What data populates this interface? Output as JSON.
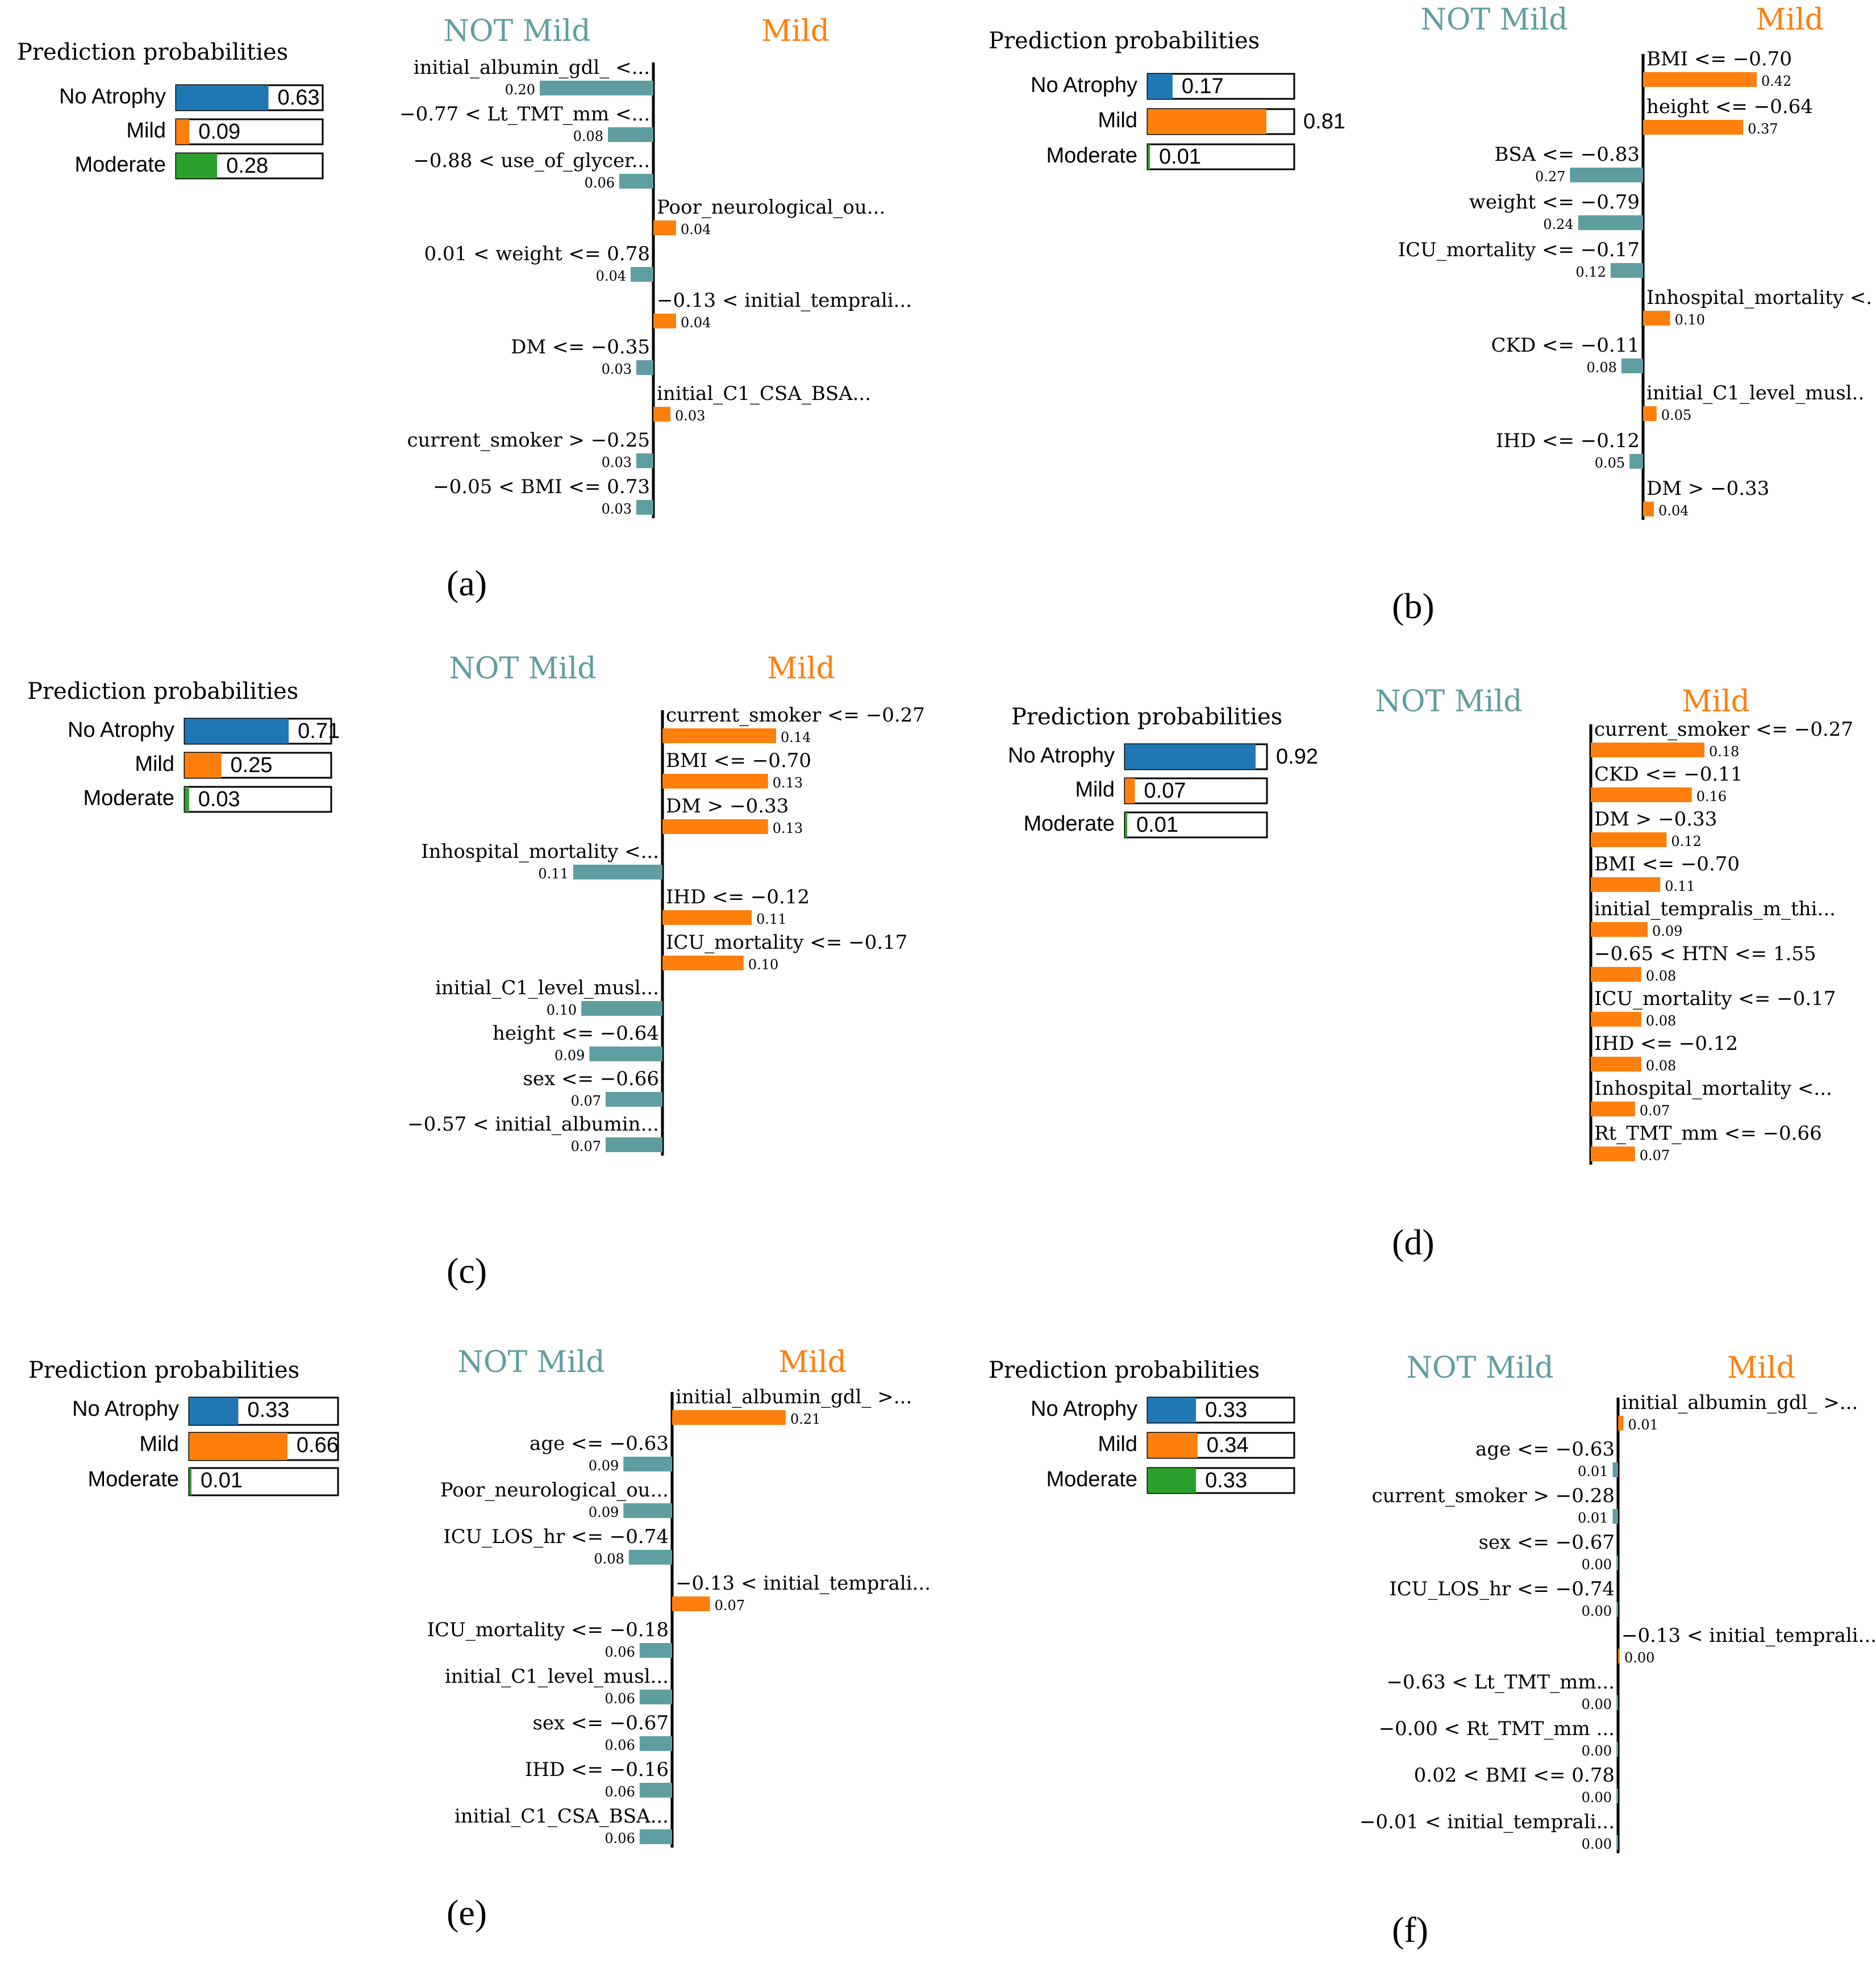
{
  "colors": {
    "blue": "#1f77b4",
    "orange": "#ff7f0e",
    "green": "#2ca02c",
    "teal": "#5f9ea0"
  },
  "chart_data": [
    {
      "type": "bar",
      "panel": "(a)",
      "pred_title": "Prediction probabilities",
      "probabilities": [
        {
          "label": "No Atrophy",
          "value": 0.63,
          "text": "0.63",
          "color": "blue"
        },
        {
          "label": "Mild",
          "value": 0.09,
          "text": "0.09",
          "color": "orange"
        },
        {
          "label": "Moderate",
          "value": 0.28,
          "text": "0.28",
          "color": "green"
        }
      ],
      "neg_label": "NOT Mild",
      "pos_label": "Mild",
      "max_weight": 0.2,
      "features": [
        {
          "label": "initial_albumin_gdl_ <...",
          "weight": 0.2,
          "text": "0.20",
          "side": "neg"
        },
        {
          "label": "−0.77 < Lt_TMT_mm <...",
          "weight": 0.08,
          "text": "0.08",
          "side": "neg"
        },
        {
          "label": "−0.88 < use_of_glycer...",
          "weight": 0.06,
          "text": "0.06",
          "side": "neg"
        },
        {
          "label": "Poor_neurological_ou...",
          "weight": 0.04,
          "text": "0.04",
          "side": "pos"
        },
        {
          "label": "0.01 < weight <= 0.78",
          "weight": 0.04,
          "text": "0.04",
          "side": "neg"
        },
        {
          "label": "−0.13 < initial_temprali...",
          "weight": 0.04,
          "text": "0.04",
          "side": "pos"
        },
        {
          "label": "DM <= −0.35",
          "weight": 0.03,
          "text": "0.03",
          "side": "neg"
        },
        {
          "label": "initial_C1_CSA_BSA...",
          "weight": 0.03,
          "text": "0.03",
          "side": "pos"
        },
        {
          "label": "current_smoker > −0.25",
          "weight": 0.03,
          "text": "0.03",
          "side": "neg"
        },
        {
          "label": "−0.05 < BMI <= 0.73",
          "weight": 0.03,
          "text": "0.03",
          "side": "neg"
        }
      ]
    },
    {
      "type": "bar",
      "panel": "(b)",
      "pred_title": "Prediction probabilities",
      "probabilities": [
        {
          "label": "No Atrophy",
          "value": 0.17,
          "text": "0.17",
          "color": "blue"
        },
        {
          "label": "Mild",
          "value": 0.81,
          "text": "0.81",
          "color": "orange"
        },
        {
          "label": "Moderate",
          "value": 0.01,
          "text": "0.01",
          "color": "green"
        }
      ],
      "neg_label": "NOT Mild",
      "pos_label": "Mild",
      "max_weight": 0.42,
      "features": [
        {
          "label": "BMI <= −0.70",
          "weight": 0.42,
          "text": "0.42",
          "side": "pos"
        },
        {
          "label": "height <= −0.64",
          "weight": 0.37,
          "text": "0.37",
          "side": "pos"
        },
        {
          "label": "BSA <= −0.83",
          "weight": 0.27,
          "text": "0.27",
          "side": "neg"
        },
        {
          "label": "weight <= −0.79",
          "weight": 0.24,
          "text": "0.24",
          "side": "neg"
        },
        {
          "label": "ICU_mortality <= −0.17",
          "weight": 0.12,
          "text": "0.12",
          "side": "neg"
        },
        {
          "label": "Inhospital_mortality <.",
          "weight": 0.1,
          "text": "0.10",
          "side": "pos"
        },
        {
          "label": "CKD <= −0.11",
          "weight": 0.08,
          "text": "0.08",
          "side": "neg"
        },
        {
          "label": "initial_C1_level_musl..",
          "weight": 0.05,
          "text": "0.05",
          "side": "pos"
        },
        {
          "label": "IHD <= −0.12",
          "weight": 0.05,
          "text": "0.05",
          "side": "neg"
        },
        {
          "label": "DM > −0.33",
          "weight": 0.04,
          "text": "0.04",
          "side": "pos"
        }
      ]
    },
    {
      "type": "bar",
      "panel": "(c)",
      "pred_title": "Prediction probabilities",
      "probabilities": [
        {
          "label": "No Atrophy",
          "value": 0.71,
          "text": "0.71",
          "color": "blue"
        },
        {
          "label": "Mild",
          "value": 0.25,
          "text": "0.25",
          "color": "orange"
        },
        {
          "label": "Moderate",
          "value": 0.03,
          "text": "0.03",
          "color": "green"
        }
      ],
      "neg_label": "NOT Mild",
      "pos_label": "Mild",
      "max_weight": 0.14,
      "features": [
        {
          "label": "current_smoker <= −0.27",
          "weight": 0.14,
          "text": "0.14",
          "side": "pos"
        },
        {
          "label": "BMI <= −0.70",
          "weight": 0.13,
          "text": "0.13",
          "side": "pos"
        },
        {
          "label": "DM > −0.33",
          "weight": 0.13,
          "text": "0.13",
          "side": "pos"
        },
        {
          "label": "Inhospital_mortality <...",
          "weight": 0.11,
          "text": "0.11",
          "side": "neg"
        },
        {
          "label": "IHD <= −0.12",
          "weight": 0.11,
          "text": "0.11",
          "side": "pos"
        },
        {
          "label": "ICU_mortality <= −0.17",
          "weight": 0.1,
          "text": "0.10",
          "side": "pos"
        },
        {
          "label": "initial_C1_level_musl...",
          "weight": 0.1,
          "text": "0.10",
          "side": "neg"
        },
        {
          "label": "height <= −0.64",
          "weight": 0.09,
          "text": "0.09",
          "side": "neg"
        },
        {
          "label": "sex <= −0.66",
          "weight": 0.07,
          "text": "0.07",
          "side": "neg"
        },
        {
          "label": "−0.57 < initial_albumin...",
          "weight": 0.07,
          "text": "0.07",
          "side": "neg"
        }
      ]
    },
    {
      "type": "bar",
      "panel": "(d)",
      "pred_title": "Prediction probabilities",
      "probabilities": [
        {
          "label": "No Atrophy",
          "value": 0.92,
          "text": "0.92",
          "color": "blue"
        },
        {
          "label": "Mild",
          "value": 0.07,
          "text": "0.07",
          "color": "orange"
        },
        {
          "label": "Moderate",
          "value": 0.01,
          "text": "0.01",
          "color": "green"
        }
      ],
      "neg_label": "NOT Mild",
      "pos_label": "Mild",
      "max_weight": 0.18,
      "features": [
        {
          "label": "current_smoker <= −0.27",
          "weight": 0.18,
          "text": "0.18",
          "side": "pos"
        },
        {
          "label": "CKD <= −0.11",
          "weight": 0.16,
          "text": "0.16",
          "side": "pos"
        },
        {
          "label": "DM > −0.33",
          "weight": 0.12,
          "text": "0.12",
          "side": "pos"
        },
        {
          "label": "BMI <= −0.70",
          "weight": 0.11,
          "text": "0.11",
          "side": "pos"
        },
        {
          "label": "initial_tempralis_m_thi...",
          "weight": 0.09,
          "text": "0.09",
          "side": "pos"
        },
        {
          "label": "−0.65 < HTN <= 1.55",
          "weight": 0.08,
          "text": "0.08",
          "side": "pos"
        },
        {
          "label": "ICU_mortality <= −0.17",
          "weight": 0.08,
          "text": "0.08",
          "side": "pos"
        },
        {
          "label": "IHD <= −0.12",
          "weight": 0.08,
          "text": "0.08",
          "side": "pos"
        },
        {
          "label": "Inhospital_mortality <...",
          "weight": 0.07,
          "text": "0.07",
          "side": "pos"
        },
        {
          "label": "Rt_TMT_mm <= −0.66",
          "weight": 0.07,
          "text": "0.07",
          "side": "pos"
        }
      ]
    },
    {
      "type": "bar",
      "panel": "(e)",
      "pred_title": "Prediction probabilities",
      "probabilities": [
        {
          "label": "No Atrophy",
          "value": 0.33,
          "text": "0.33",
          "color": "blue"
        },
        {
          "label": "Mild",
          "value": 0.66,
          "text": "0.66",
          "color": "orange"
        },
        {
          "label": "Moderate",
          "value": 0.01,
          "text": "0.01",
          "color": "green"
        }
      ],
      "neg_label": "NOT Mild",
      "pos_label": "Mild",
      "max_weight": 0.21,
      "features": [
        {
          "label": "initial_albumin_gdl_ >...",
          "weight": 0.21,
          "text": "0.21",
          "side": "pos"
        },
        {
          "label": "age <= −0.63",
          "weight": 0.09,
          "text": "0.09",
          "side": "neg"
        },
        {
          "label": "Poor_neurological_ou...",
          "weight": 0.09,
          "text": "0.09",
          "side": "neg"
        },
        {
          "label": "ICU_LOS_hr <= −0.74",
          "weight": 0.08,
          "text": "0.08",
          "side": "neg"
        },
        {
          "label": "−0.13 < initial_temprali...",
          "weight": 0.07,
          "text": "0.07",
          "side": "pos"
        },
        {
          "label": "ICU_mortality <= −0.18",
          "weight": 0.06,
          "text": "0.06",
          "side": "neg"
        },
        {
          "label": "initial_C1_level_musl...",
          "weight": 0.06,
          "text": "0.06",
          "side": "neg"
        },
        {
          "label": "sex <= −0.67",
          "weight": 0.06,
          "text": "0.06",
          "side": "neg"
        },
        {
          "label": "IHD <= −0.16",
          "weight": 0.06,
          "text": "0.06",
          "side": "neg"
        },
        {
          "label": "initial_C1_CSA_BSA...",
          "weight": 0.06,
          "text": "0.06",
          "side": "neg"
        }
      ]
    },
    {
      "type": "bar",
      "panel": "(f)",
      "pred_title": "Prediction probabilities",
      "probabilities": [
        {
          "label": "No Atrophy",
          "value": 0.33,
          "text": "0.33",
          "color": "blue"
        },
        {
          "label": "Mild",
          "value": 0.34,
          "text": "0.34",
          "color": "orange"
        },
        {
          "label": "Moderate",
          "value": 0.33,
          "text": "0.33",
          "color": "green"
        }
      ],
      "neg_label": "NOT Mild",
      "pos_label": "Mild",
      "max_weight": 0.21,
      "features": [
        {
          "label": "initial_albumin_gdl_ >...",
          "weight": 0.01,
          "text": "0.01",
          "side": "pos"
        },
        {
          "label": "age <= −0.63",
          "weight": 0.01,
          "text": "0.01",
          "side": "neg"
        },
        {
          "label": "current_smoker > −0.28",
          "weight": 0.01,
          "text": "0.01",
          "side": "neg"
        },
        {
          "label": "sex <= −0.67",
          "weight": 0.0,
          "text": "0.00",
          "side": "neg"
        },
        {
          "label": "ICU_LOS_hr <= −0.74",
          "weight": 0.0,
          "text": "0.00",
          "side": "neg"
        },
        {
          "label": "−0.13 < initial_temprali...",
          "weight": 0.0,
          "text": "0.00",
          "side": "pos"
        },
        {
          "label": "−0.63 < Lt_TMT_mm...",
          "weight": 0.0,
          "text": "0.00",
          "side": "neg"
        },
        {
          "label": "−0.00 < Rt_TMT_mm ...",
          "weight": 0.0,
          "text": "0.00",
          "side": "neg"
        },
        {
          "label": "0.02 < BMI <= 0.78",
          "weight": 0.0,
          "text": "0.00",
          "side": "neg"
        },
        {
          "label": "−0.01 < initial_temprali...",
          "weight": 0.0,
          "text": "0.00",
          "side": "neg"
        }
      ]
    }
  ]
}
